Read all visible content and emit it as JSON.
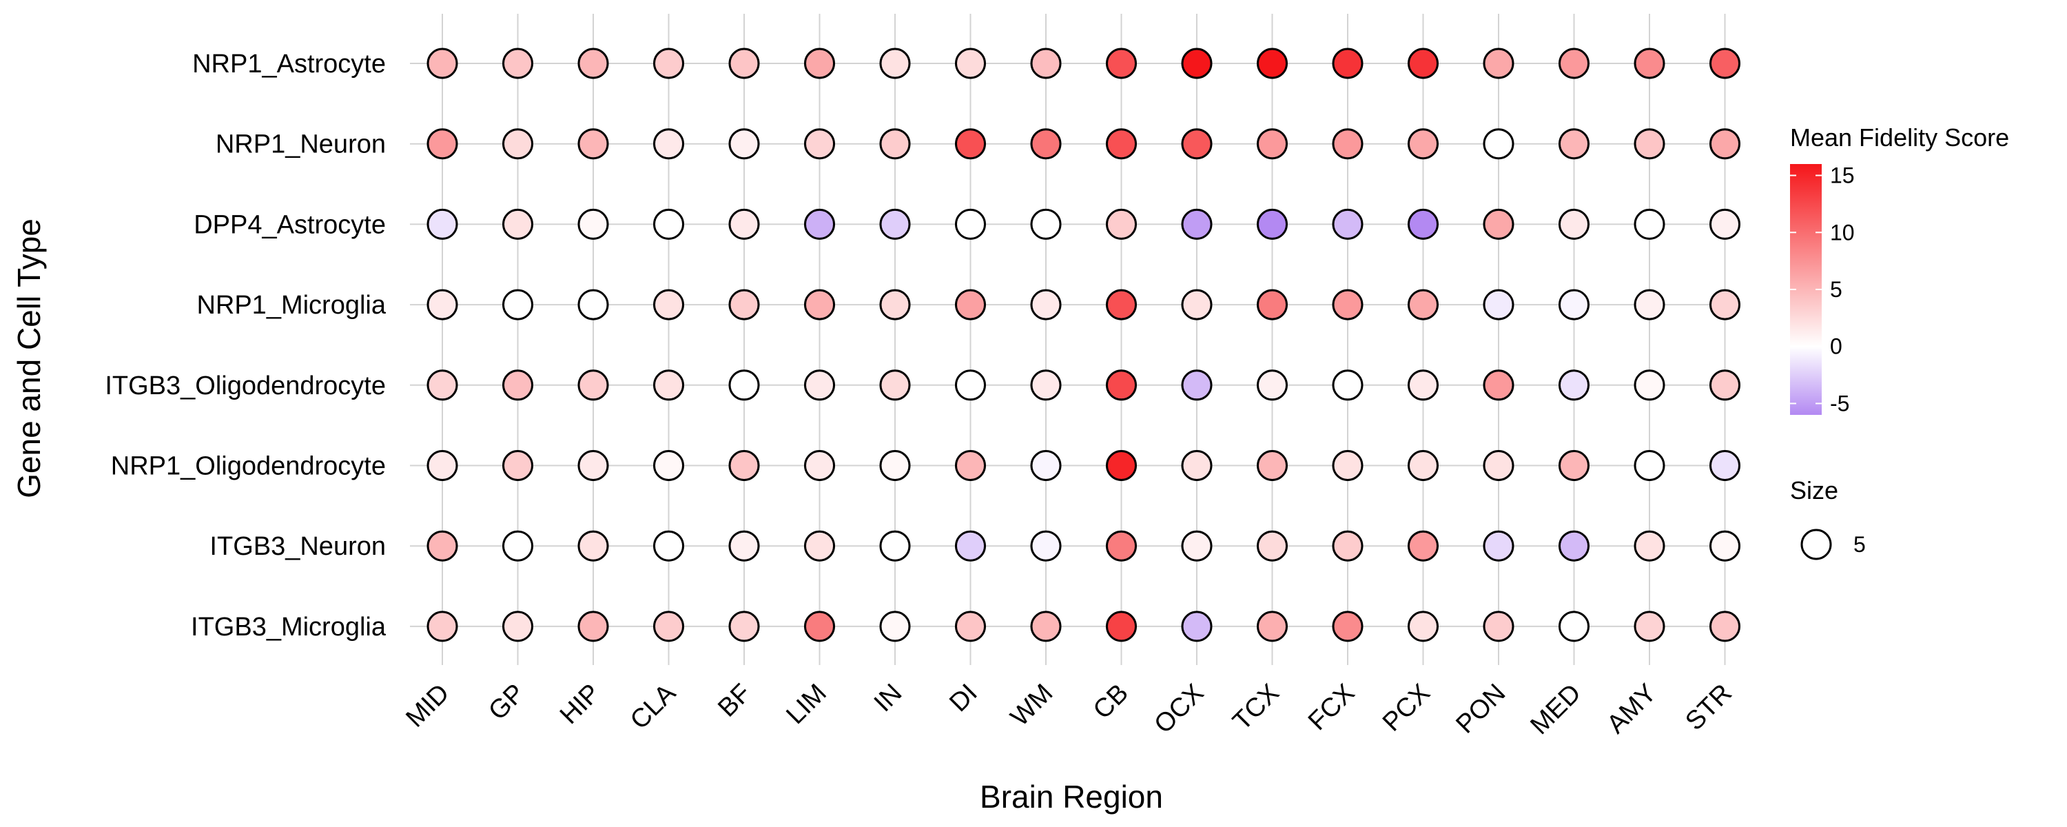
{
  "chart_data": {
    "type": "dot-heatmap",
    "xlabel": "Brain Region",
    "ylabel": "Gene and Cell Type",
    "x_categories": [
      "MID",
      "GP",
      "HIP",
      "CLA",
      "BF",
      "LIM",
      "IN",
      "DI",
      "WM",
      "CB",
      "OCX",
      "TCX",
      "FCX",
      "PCX",
      "PON",
      "MED",
      "AMY",
      "STR"
    ],
    "y_categories": [
      "NRP1_Astrocyte",
      "NRP1_Neuron",
      "DPP4_Astrocyte",
      "NRP1_Microglia",
      "ITGB3_Oligodendrocyte",
      "NRP1_Oligodendrocyte",
      "ITGB3_Neuron",
      "ITGB3_Microglia"
    ],
    "values": [
      [
        5,
        4,
        5,
        3.5,
        4,
        6,
        2,
        2.5,
        4.5,
        12,
        16,
        16,
        14,
        14,
        6,
        7,
        8,
        11
      ],
      [
        7,
        2.5,
        5,
        1.5,
        1,
        3,
        3.5,
        12,
        9.5,
        12,
        11.5,
        7,
        7,
        6,
        0,
        5,
        4,
        6
      ],
      [
        -1.5,
        2,
        0.5,
        0,
        1.5,
        -4,
        -2.5,
        0,
        0,
        3.5,
        -5,
        -6,
        -3.5,
        -6,
        6,
        1.5,
        0,
        1
      ],
      [
        1.5,
        0,
        0,
        2,
        3.5,
        5.5,
        2.5,
        6.5,
        1.5,
        12,
        2,
        9,
        7,
        6,
        -1,
        -0.5,
        1,
        3
      ],
      [
        3,
        4.5,
        3.5,
        2,
        0,
        1.5,
        2.5,
        0,
        1.5,
        12.5,
        -3.5,
        1,
        0,
        1.5,
        7,
        -1.5,
        0.5,
        3.5
      ],
      [
        1.5,
        3.5,
        1.5,
        0.5,
        4,
        1.5,
        0.5,
        5,
        -0.5,
        15,
        2,
        5,
        2,
        2,
        2,
        5,
        0,
        -1.5
      ],
      [
        5,
        0,
        2,
        0,
        1,
        2,
        0,
        -2.5,
        -0.5,
        9,
        1,
        2.5,
        3.5,
        7,
        -2,
        -3.5,
        2,
        0.5
      ],
      [
        3.5,
        2,
        5,
        3.5,
        3,
        9,
        0.5,
        4,
        5,
        13,
        -3.5,
        5.5,
        8,
        2,
        3.5,
        0,
        3,
        4
      ]
    ],
    "color_scale": {
      "title": "Mean Fidelity Score",
      "min": -6,
      "max": 16,
      "ticks": [
        15,
        10,
        5,
        0,
        -5
      ],
      "low_color": "#b389f2",
      "mid_color": "#ffffff",
      "high_color": "#f5161a"
    },
    "size_legend": {
      "title": "Size",
      "value": "5"
    },
    "grid": true,
    "legend_position": "right"
  }
}
